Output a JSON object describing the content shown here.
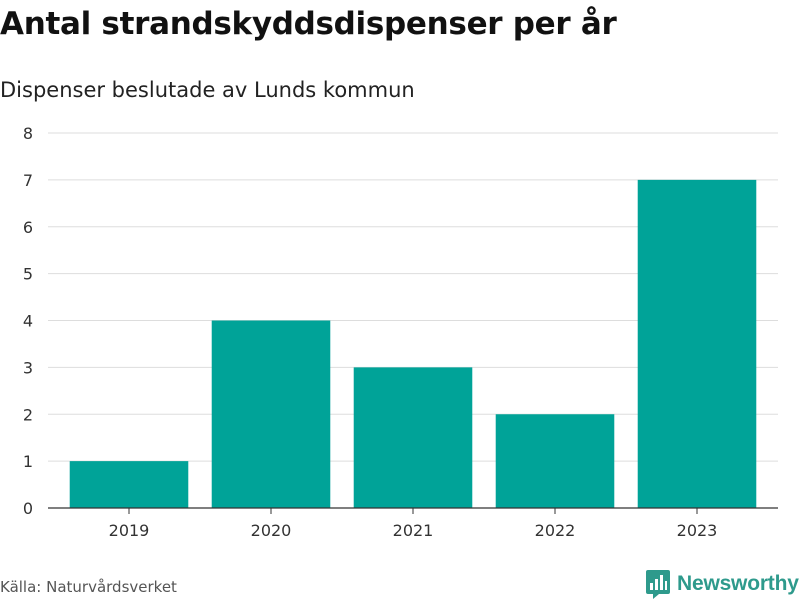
{
  "title": "Antal strandskyddsdispenser per år",
  "subtitle": "Dispenser beslutade av Lunds kommun",
  "source": "Källa: Naturvårdsverket",
  "brand": {
    "name": "Newsworthy",
    "icon": "newsworthy-logo-icon",
    "color": "#2e9a8c"
  },
  "chart_data": {
    "type": "bar",
    "categories": [
      "2019",
      "2020",
      "2021",
      "2022",
      "2023"
    ],
    "values": [
      1,
      4,
      3,
      2,
      7
    ],
    "ylim": [
      0,
      8
    ],
    "yticks": [
      0,
      1,
      2,
      3,
      4,
      5,
      6,
      7,
      8
    ],
    "bar_color": "#00a398",
    "grid": true,
    "xlabel": "",
    "ylabel": ""
  }
}
